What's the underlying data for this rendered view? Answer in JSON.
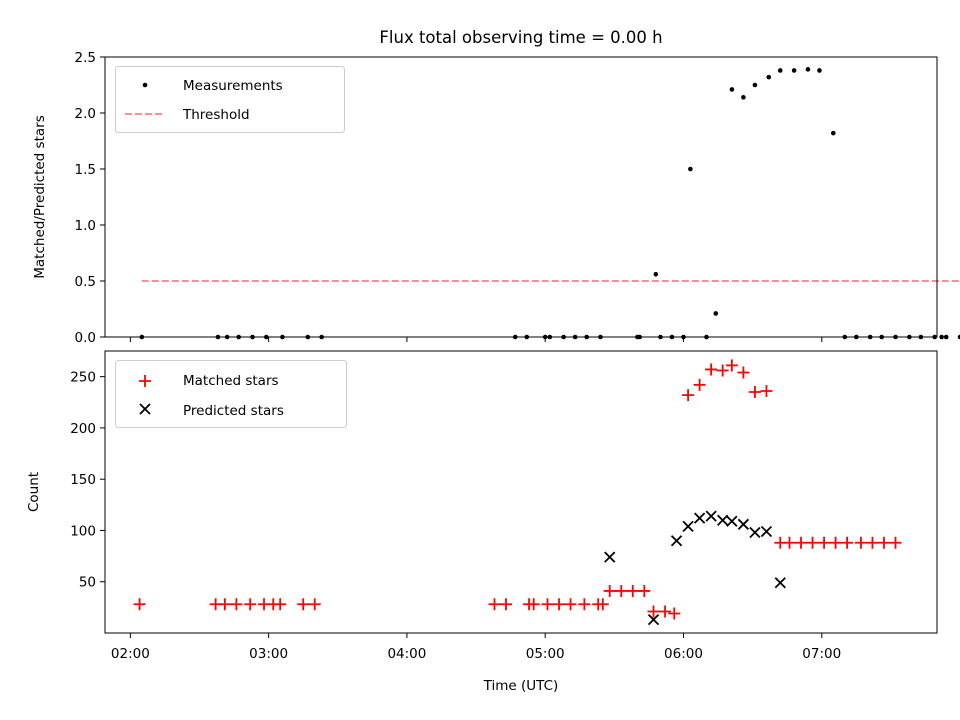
{
  "title": "Flux total observing time = 0.00 h",
  "xlabel": "Time (UTC)",
  "x_ticks": [
    "02:00",
    "03:00",
    "04:00",
    "05:00",
    "06:00",
    "07:00"
  ],
  "colors": {
    "measurements": "#000000",
    "threshold": "#ff7f7f",
    "matched": "#ff0000",
    "predicted": "#000000"
  },
  "chart_data": [
    {
      "type": "scatter",
      "panel": "top",
      "ylabel": "Matched/Predicted stars",
      "xlim": [
        "01:49",
        "07:50"
      ],
      "ylim": [
        0,
        2.5
      ],
      "y_ticks": [
        "0.0",
        "0.5",
        "1.0",
        "1.5",
        "2.0",
        "2.5"
      ],
      "legend_position": "upper left",
      "series": [
        {
          "name": "Measurements",
          "marker": "dot",
          "points": [
            [
              "02:05",
              0
            ],
            [
              "02:38",
              0
            ],
            [
              "02:42",
              0
            ],
            [
              "02:47",
              0
            ],
            [
              "02:53",
              0
            ],
            [
              "02:59",
              0
            ],
            [
              "03:06",
              0
            ],
            [
              "03:17",
              0
            ],
            [
              "03:23",
              0
            ],
            [
              "04:47",
              0
            ],
            [
              "04:52",
              0
            ],
            [
              "05:00",
              0
            ],
            [
              "05:02",
              0
            ],
            [
              "05:08",
              0
            ],
            [
              "05:13",
              0
            ],
            [
              "05:18",
              0
            ],
            [
              "05:24",
              0
            ],
            [
              "05:40",
              0
            ],
            [
              "05:41",
              0
            ],
            [
              "05:48",
              0.56
            ],
            [
              "05:50",
              0
            ],
            [
              "05:55",
              0
            ],
            [
              "06:00",
              0
            ],
            [
              "06:03",
              1.5
            ],
            [
              "06:10",
              0
            ],
            [
              "06:14",
              0.21
            ],
            [
              "06:21",
              2.21
            ],
            [
              "06:26",
              2.14
            ],
            [
              "06:31",
              2.25
            ],
            [
              "06:37",
              2.32
            ],
            [
              "06:42",
              2.38
            ],
            [
              "06:48",
              2.38
            ],
            [
              "06:54",
              2.39
            ],
            [
              "06:59",
              2.38
            ],
            [
              "07:05",
              1.82
            ],
            [
              "07:10",
              0
            ],
            [
              "07:15",
              0
            ],
            [
              "07:21",
              0
            ],
            [
              "07:26",
              0
            ],
            [
              "07:32",
              0
            ],
            [
              "07:38",
              0
            ],
            [
              "07:43",
              0
            ],
            [
              "07:49",
              0
            ],
            [
              "07:52",
              0
            ],
            [
              "07:54",
              0
            ],
            [
              "08:00",
              0
            ]
          ]
        },
        {
          "name": "Threshold",
          "style": "dashed",
          "points": [
            [
              "02:05",
              0.5
            ],
            [
              "08:00",
              0.5
            ]
          ]
        }
      ]
    },
    {
      "type": "scatter",
      "panel": "bottom",
      "ylabel": "Count",
      "xlim": [
        "01:49",
        "07:50"
      ],
      "ylim": [
        0,
        275
      ],
      "y_ticks": [
        "50",
        "100",
        "150",
        "200",
        "250"
      ],
      "legend_position": "upper left",
      "series": [
        {
          "name": "Matched stars",
          "marker": "plus",
          "points": [
            [
              "02:04",
              28
            ],
            [
              "02:37",
              28
            ],
            [
              "02:41",
              28
            ],
            [
              "02:46",
              28
            ],
            [
              "02:52",
              28
            ],
            [
              "02:58",
              28
            ],
            [
              "03:02",
              28
            ],
            [
              "03:05",
              28
            ],
            [
              "03:15",
              28
            ],
            [
              "03:20",
              28
            ],
            [
              "04:38",
              28
            ],
            [
              "04:43",
              28
            ],
            [
              "04:53",
              28
            ],
            [
              "04:55",
              28
            ],
            [
              "05:01",
              28
            ],
            [
              "05:06",
              28
            ],
            [
              "05:11",
              28
            ],
            [
              "05:17",
              28
            ],
            [
              "05:23",
              28
            ],
            [
              "05:25",
              28
            ],
            [
              "05:28",
              41
            ],
            [
              "05:33",
              41
            ],
            [
              "05:38",
              41
            ],
            [
              "05:43",
              41
            ],
            [
              "05:47",
              21
            ],
            [
              "05:52",
              21
            ],
            [
              "05:56",
              19
            ],
            [
              "06:02",
              232
            ],
            [
              "06:07",
              242
            ],
            [
              "06:12",
              257
            ],
            [
              "06:17",
              256
            ],
            [
              "06:21",
              261
            ],
            [
              "06:26",
              254
            ],
            [
              "06:31",
              235
            ],
            [
              "06:36",
              236
            ],
            [
              "06:42",
              88
            ],
            [
              "06:46",
              88
            ],
            [
              "06:51",
              88
            ],
            [
              "06:56",
              88
            ],
            [
              "07:01",
              88
            ],
            [
              "07:06",
              88
            ],
            [
              "07:11",
              88
            ],
            [
              "07:17",
              88
            ],
            [
              "07:22",
              88
            ],
            [
              "07:27",
              88
            ],
            [
              "07:32",
              88
            ]
          ]
        },
        {
          "name": "Predicted stars",
          "marker": "x",
          "points": [
            [
              "05:28",
              74
            ],
            [
              "05:47",
              13
            ],
            [
              "05:57",
              90
            ],
            [
              "06:02",
              104
            ],
            [
              "06:07",
              112
            ],
            [
              "06:12",
              114
            ],
            [
              "06:17",
              110
            ],
            [
              "06:21",
              109
            ],
            [
              "06:26",
              106
            ],
            [
              "06:31",
              98
            ],
            [
              "06:36",
              99
            ],
            [
              "06:42",
              49
            ]
          ]
        }
      ]
    }
  ]
}
